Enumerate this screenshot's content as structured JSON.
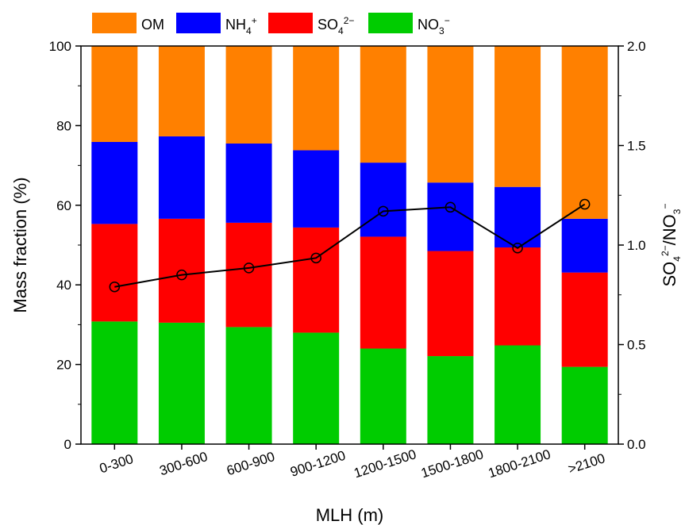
{
  "chart_data": {
    "type": "bar",
    "stacked": true,
    "categories": [
      "0-300",
      "300-600",
      "600-900",
      "900-1200",
      "1200-1500",
      "1500-1800",
      "1800-2100",
      ">2100"
    ],
    "series": [
      {
        "name": "NO3−",
        "color": "#00cc00",
        "values": [
          30.8,
          30.5,
          29.4,
          28.0,
          24.0,
          22.1,
          24.8,
          19.4
        ]
      },
      {
        "name": "SO42−",
        "color": "#ff0000",
        "values": [
          24.5,
          26.1,
          26.2,
          26.4,
          28.1,
          26.4,
          24.6,
          23.7
        ]
      },
      {
        "name": "NH4+",
        "color": "#0000ff",
        "values": [
          20.6,
          20.7,
          19.9,
          19.4,
          18.6,
          17.2,
          15.2,
          13.5
        ]
      },
      {
        "name": "OM",
        "color": "#ff8000",
        "values": [
          24.1,
          22.7,
          24.5,
          26.2,
          29.3,
          34.3,
          35.4,
          43.4
        ]
      }
    ],
    "line_series": {
      "name": "SO42−/NO3−",
      "axis": "right",
      "color": "#000000",
      "values": [
        0.79,
        0.85,
        0.885,
        0.935,
        1.17,
        1.19,
        0.985,
        1.205
      ]
    },
    "xlabel": "MLH (m)",
    "ylabel": "Mass fraction (%)",
    "ylabel_right": {
      "main": "SO",
      "sub1": "4",
      "sup1": "2−",
      "mid": "/NO",
      "sub2": "3",
      "sup2": "−"
    },
    "ylim": [
      0,
      100
    ],
    "yticks": [
      "0",
      "20",
      "40",
      "60",
      "80",
      "100"
    ],
    "ylim_right": [
      0.0,
      2.0
    ],
    "yticks_right": [
      "0.0",
      "0.5",
      "1.0",
      "1.5",
      "2.0"
    ],
    "legend": {
      "position": "top",
      "entries": [
        {
          "color": "#ff8000",
          "main": "OM",
          "sub": "",
          "sup": ""
        },
        {
          "color": "#0000ff",
          "main": "NH",
          "sub": "4",
          "sup": "+"
        },
        {
          "color": "#ff0000",
          "main": "SO",
          "sub": "4",
          "sup": "2−"
        },
        {
          "color": "#00cc00",
          "main": "NO",
          "sub": "3",
          "sup": "−"
        }
      ]
    },
    "grid": false
  }
}
